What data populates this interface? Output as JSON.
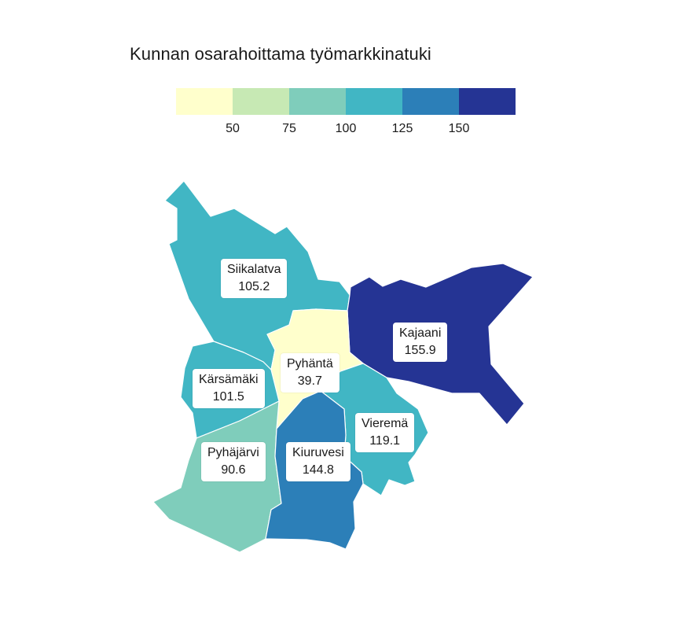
{
  "title": "Kunnan osarahoittama työmarkkinatuki",
  "legend": {
    "colors": [
      "#ffffcc",
      "#c7e9b4",
      "#7fcdbb",
      "#41b6c4",
      "#2c7fb8",
      "#253494"
    ],
    "breaks": [
      "50",
      "75",
      "100",
      "125",
      "150"
    ]
  },
  "regions": [
    {
      "name": "Siikalatva",
      "value": "105.2",
      "color": "#41b6c4"
    },
    {
      "name": "Kajaani",
      "value": "155.9",
      "color": "#253494"
    },
    {
      "name": "Pyhäntä",
      "value": "39.7",
      "color": "#ffffcc"
    },
    {
      "name": "Kärsämäki",
      "value": "101.5",
      "color": "#41b6c4"
    },
    {
      "name": "Vieremä",
      "value": "119.1",
      "color": "#41b6c4"
    },
    {
      "name": "Pyhäjärvi",
      "value": "90.6",
      "color": "#7fcdbb"
    },
    {
      "name": "Kiuruvesi",
      "value": "144.8",
      "color": "#2c7fb8"
    }
  ]
}
